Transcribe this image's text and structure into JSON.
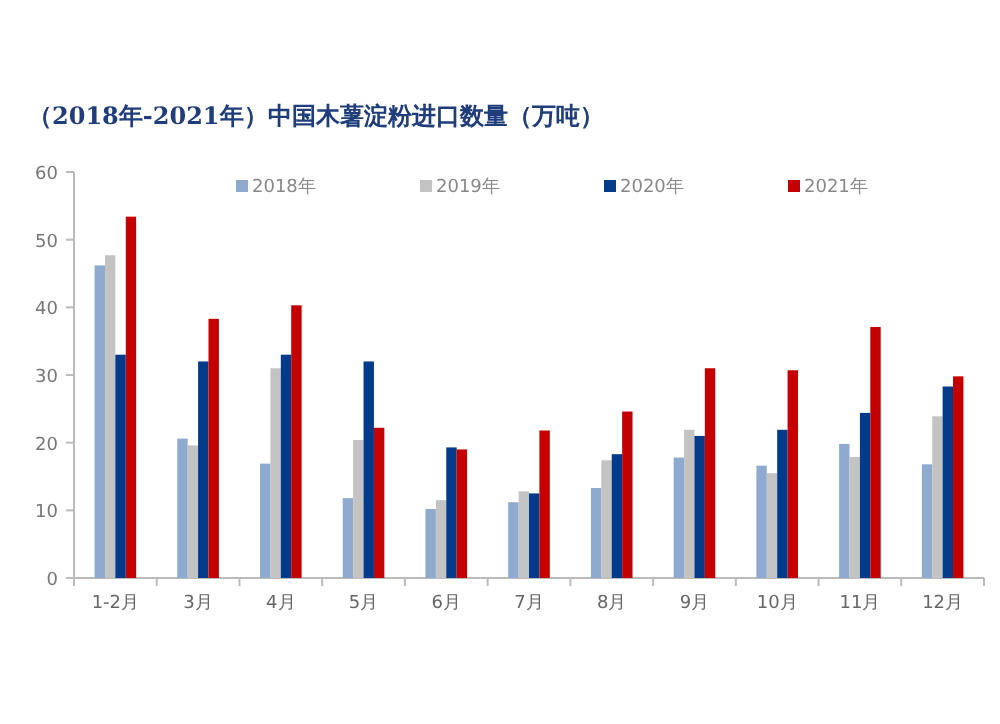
{
  "chart_data": {
    "type": "bar",
    "title": "（2018年-2021年）中国木薯淀粉进口数量（万吨）",
    "categories": [
      "1-2月",
      "3月",
      "4月",
      "5月",
      "6月",
      "7月",
      "8月",
      "9月",
      "10月",
      "11月",
      "12月"
    ],
    "series": [
      {
        "name": "2018年",
        "color": "#8faacf",
        "values": [
          46.2,
          20.6,
          16.9,
          11.8,
          10.2,
          11.2,
          13.3,
          17.8,
          16.6,
          19.8,
          16.8
        ]
      },
      {
        "name": "2019年",
        "color": "#c3c3c3",
        "values": [
          47.7,
          19.6,
          31,
          20.4,
          11.5,
          12.8,
          17.4,
          21.9,
          15.5,
          17.9,
          23.9
        ]
      },
      {
        "name": "2020年",
        "color": "#033a8a",
        "values": [
          33,
          32,
          33,
          32,
          19.3,
          12.5,
          18.3,
          21,
          21.9,
          24.4,
          28.3
        ]
      },
      {
        "name": "2021年",
        "color": "#c50000",
        "values": [
          53.4,
          38.3,
          40.3,
          22.2,
          19,
          21.8,
          24.6,
          31,
          30.7,
          37.1,
          29.8
        ]
      }
    ],
    "ylim": [
      0,
      60
    ],
    "yticks": [
      0,
      10,
      20,
      30,
      40,
      50,
      60
    ],
    "legend": "top",
    "grid": false
  }
}
